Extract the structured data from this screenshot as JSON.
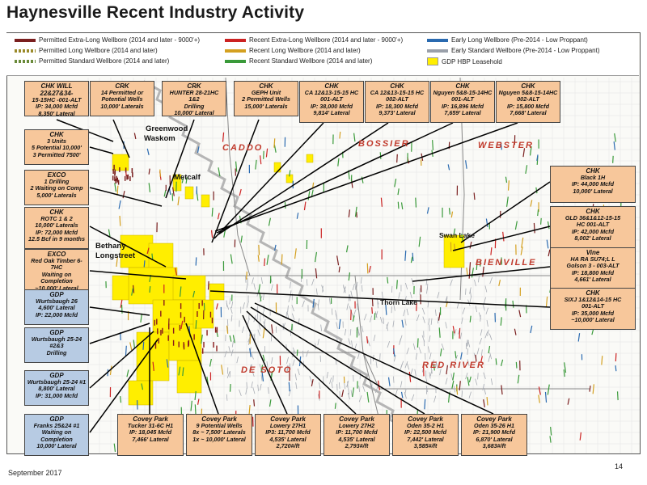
{
  "title": "Haynesville Recent Industry Activity",
  "legend": {
    "items": [
      {
        "label": "Permitted Extra-Long Wellbore (2014 and later - 9000'+)",
        "color": "#7a1f1f"
      },
      {
        "label": "Permitted Long Wellbore (2014 and later)",
        "color": "#9a8a2a"
      },
      {
        "label": "Permitted Standard Wellbore (2014 and later)",
        "color": "#6a8a3a"
      },
      {
        "label": "Recent Extra-Long Wellbore (2014 and later - 9000'+)",
        "color": "#cc2222"
      },
      {
        "label": "Recent Long Wellbore (2014 and later)",
        "color": "#d4a020"
      },
      {
        "label": "Recent Standard Wellbore (2014 and later)",
        "color": "#3a9a3a"
      },
      {
        "label": "Early Long Wellbore (Pre-2014 - Low Proppant)",
        "color": "#2a6ab0"
      },
      {
        "label": "Early Standard Wellbore (Pre-2014 - Low Proppant)",
        "color": "#9aa0aa"
      },
      {
        "label": "GDP HBP Leasehold",
        "color": "#ffee00"
      }
    ]
  },
  "counties": [
    "CADDO",
    "BOSSIER",
    "WEBSTER",
    "BIENVILLE",
    "DE SOTO",
    "RED RIVER"
  ],
  "places": [
    "Greenwood",
    "Waskom",
    "Metcalf",
    "Bethany",
    "Longstreet",
    "Swan Lake",
    "Thorn Lake"
  ],
  "callouts_top": [
    {
      "lines": [
        "CHK WILL 22&27&34-",
        "15-15HC -001-ALT",
        "IP: 34,000 Mcfd",
        "8,350' Lateral"
      ]
    },
    {
      "lines": [
        "CRK",
        "14 Permitted or",
        "Potential Wells",
        "10,000' Laterals"
      ]
    },
    {
      "lines": [
        "CRK",
        "HUNTER 28-21HC 1&2",
        "Drilling",
        "10,000' Lateral"
      ]
    },
    {
      "lines": [
        "CHK",
        "GEPH Unit",
        "2 Permitted Wells",
        "15,000' Laterals"
      ]
    },
    {
      "lines": [
        "CHK",
        "CA 12&13-15-15 HC",
        "001-ALT",
        "IP: 38,000 Mcfd",
        "9,814' Lateral"
      ]
    },
    {
      "lines": [
        "CHK",
        "CA 12&13-15-15 HC",
        "002-ALT",
        "IP: 18,300 Mcfd",
        "9,373' Lateral"
      ]
    },
    {
      "lines": [
        "CHK",
        "Nguyen 5&8-15-14HC",
        "001-ALT",
        "IP: 16,896 Mcfd",
        "7,659' Lateral"
      ]
    },
    {
      "lines": [
        "CHK",
        "Nguyen 5&8-15-14HC",
        "002-ALT",
        "IP: 15,800 Mcfd",
        "7,668' Lateral"
      ]
    }
  ],
  "callouts_left": [
    {
      "color": "orange",
      "lines": [
        "CHK",
        "3 Units",
        "5 Potential 10,000'",
        "3 Permitted 7500'"
      ]
    },
    {
      "color": "orange",
      "lines": [
        "EXCO",
        "1 Drilling",
        "2 Waiting on Comp",
        "5,000' Laterals"
      ]
    },
    {
      "color": "orange",
      "lines": [
        "CHK",
        "ROTC 1 & 2",
        "10,000' Laterals",
        "IP: 72,000 Mcfd",
        "12.5 Bcf in 9 months"
      ]
    },
    {
      "color": "orange",
      "lines": [
        "EXCO",
        "Red Oak Timber 6-7HC",
        "Waiting on",
        "Completion",
        "~10,000' Lateral"
      ]
    },
    {
      "color": "blue",
      "lines": [
        "GDP",
        "Wurtsbaugh 26",
        "4,600' Lateral",
        "IP: 22,000 Mcfd"
      ]
    },
    {
      "color": "blue",
      "lines": [
        "GDP",
        "Wurtsbaugh 25-24",
        "#2&3",
        "Drilling"
      ]
    },
    {
      "color": "blue",
      "lines": [
        "GDP",
        "Wurtsbaugh 25-24 #1",
        "8,800' Lateral",
        "IP: 31,000 Mcfd"
      ]
    },
    {
      "color": "blue",
      "lines": [
        "GDP",
        "Franks 25&24 #1",
        "Waiting on",
        "Completion",
        "10,000' Lateral"
      ]
    }
  ],
  "callouts_right": [
    {
      "lines": [
        "CHK",
        "Black 1H",
        "IP: 44,000 Mcfd",
        "10,000' Lateral"
      ]
    },
    {
      "lines": [
        "CHK",
        "GLD 36&1&12-15-15",
        "HC 001-ALT",
        "IP: 42,000 Mcfd",
        "8,002' Lateral"
      ]
    },
    {
      "lines": [
        "Vine",
        "HA RA SU74;L L",
        "Golson 3 - 003-ALT",
        "IP: 18,800 Mcfd",
        "4,661' Lateral"
      ]
    },
    {
      "lines": [
        "CHK",
        "SIXJ 1&12&14-15 HC",
        "001-ALT",
        "IP: 35,000 Mcfd",
        "~10,000' Lateral"
      ]
    }
  ],
  "callouts_bottom": [
    {
      "lines": [
        "Covey Park",
        "Tucker 31-6C H1",
        "IP: 18,045 Mcfd",
        "7,466' Lateral"
      ]
    },
    {
      "lines": [
        "Covey Park",
        "9 Potential Wells",
        "8x ~ 7,500' Laterals",
        "1x ~ 10,000' Lateral"
      ]
    },
    {
      "lines": [
        "Covey Park",
        "Lowery 27H1",
        "IP3: 11,700 Mcfd",
        "4,535' Lateral",
        "2,720#/ft"
      ]
    },
    {
      "lines": [
        "Covey Park",
        "Lowery 27H2",
        "IP: 11,700 Mcfd",
        "4,535' Lateral",
        "2,793#/ft"
      ]
    },
    {
      "lines": [
        "Covey Park",
        "Oden 35-2 H1",
        "IP: 22,500 Mcfd",
        "7,442' Lateral",
        "3,585#/ft"
      ]
    },
    {
      "lines": [
        "Covey Park",
        "Oden 35-26 H1",
        "IP: 21,900 Mcfd",
        "6,870' Lateral",
        "3,683#/ft"
      ]
    }
  ],
  "footer": "September 2017",
  "page_number": "14"
}
